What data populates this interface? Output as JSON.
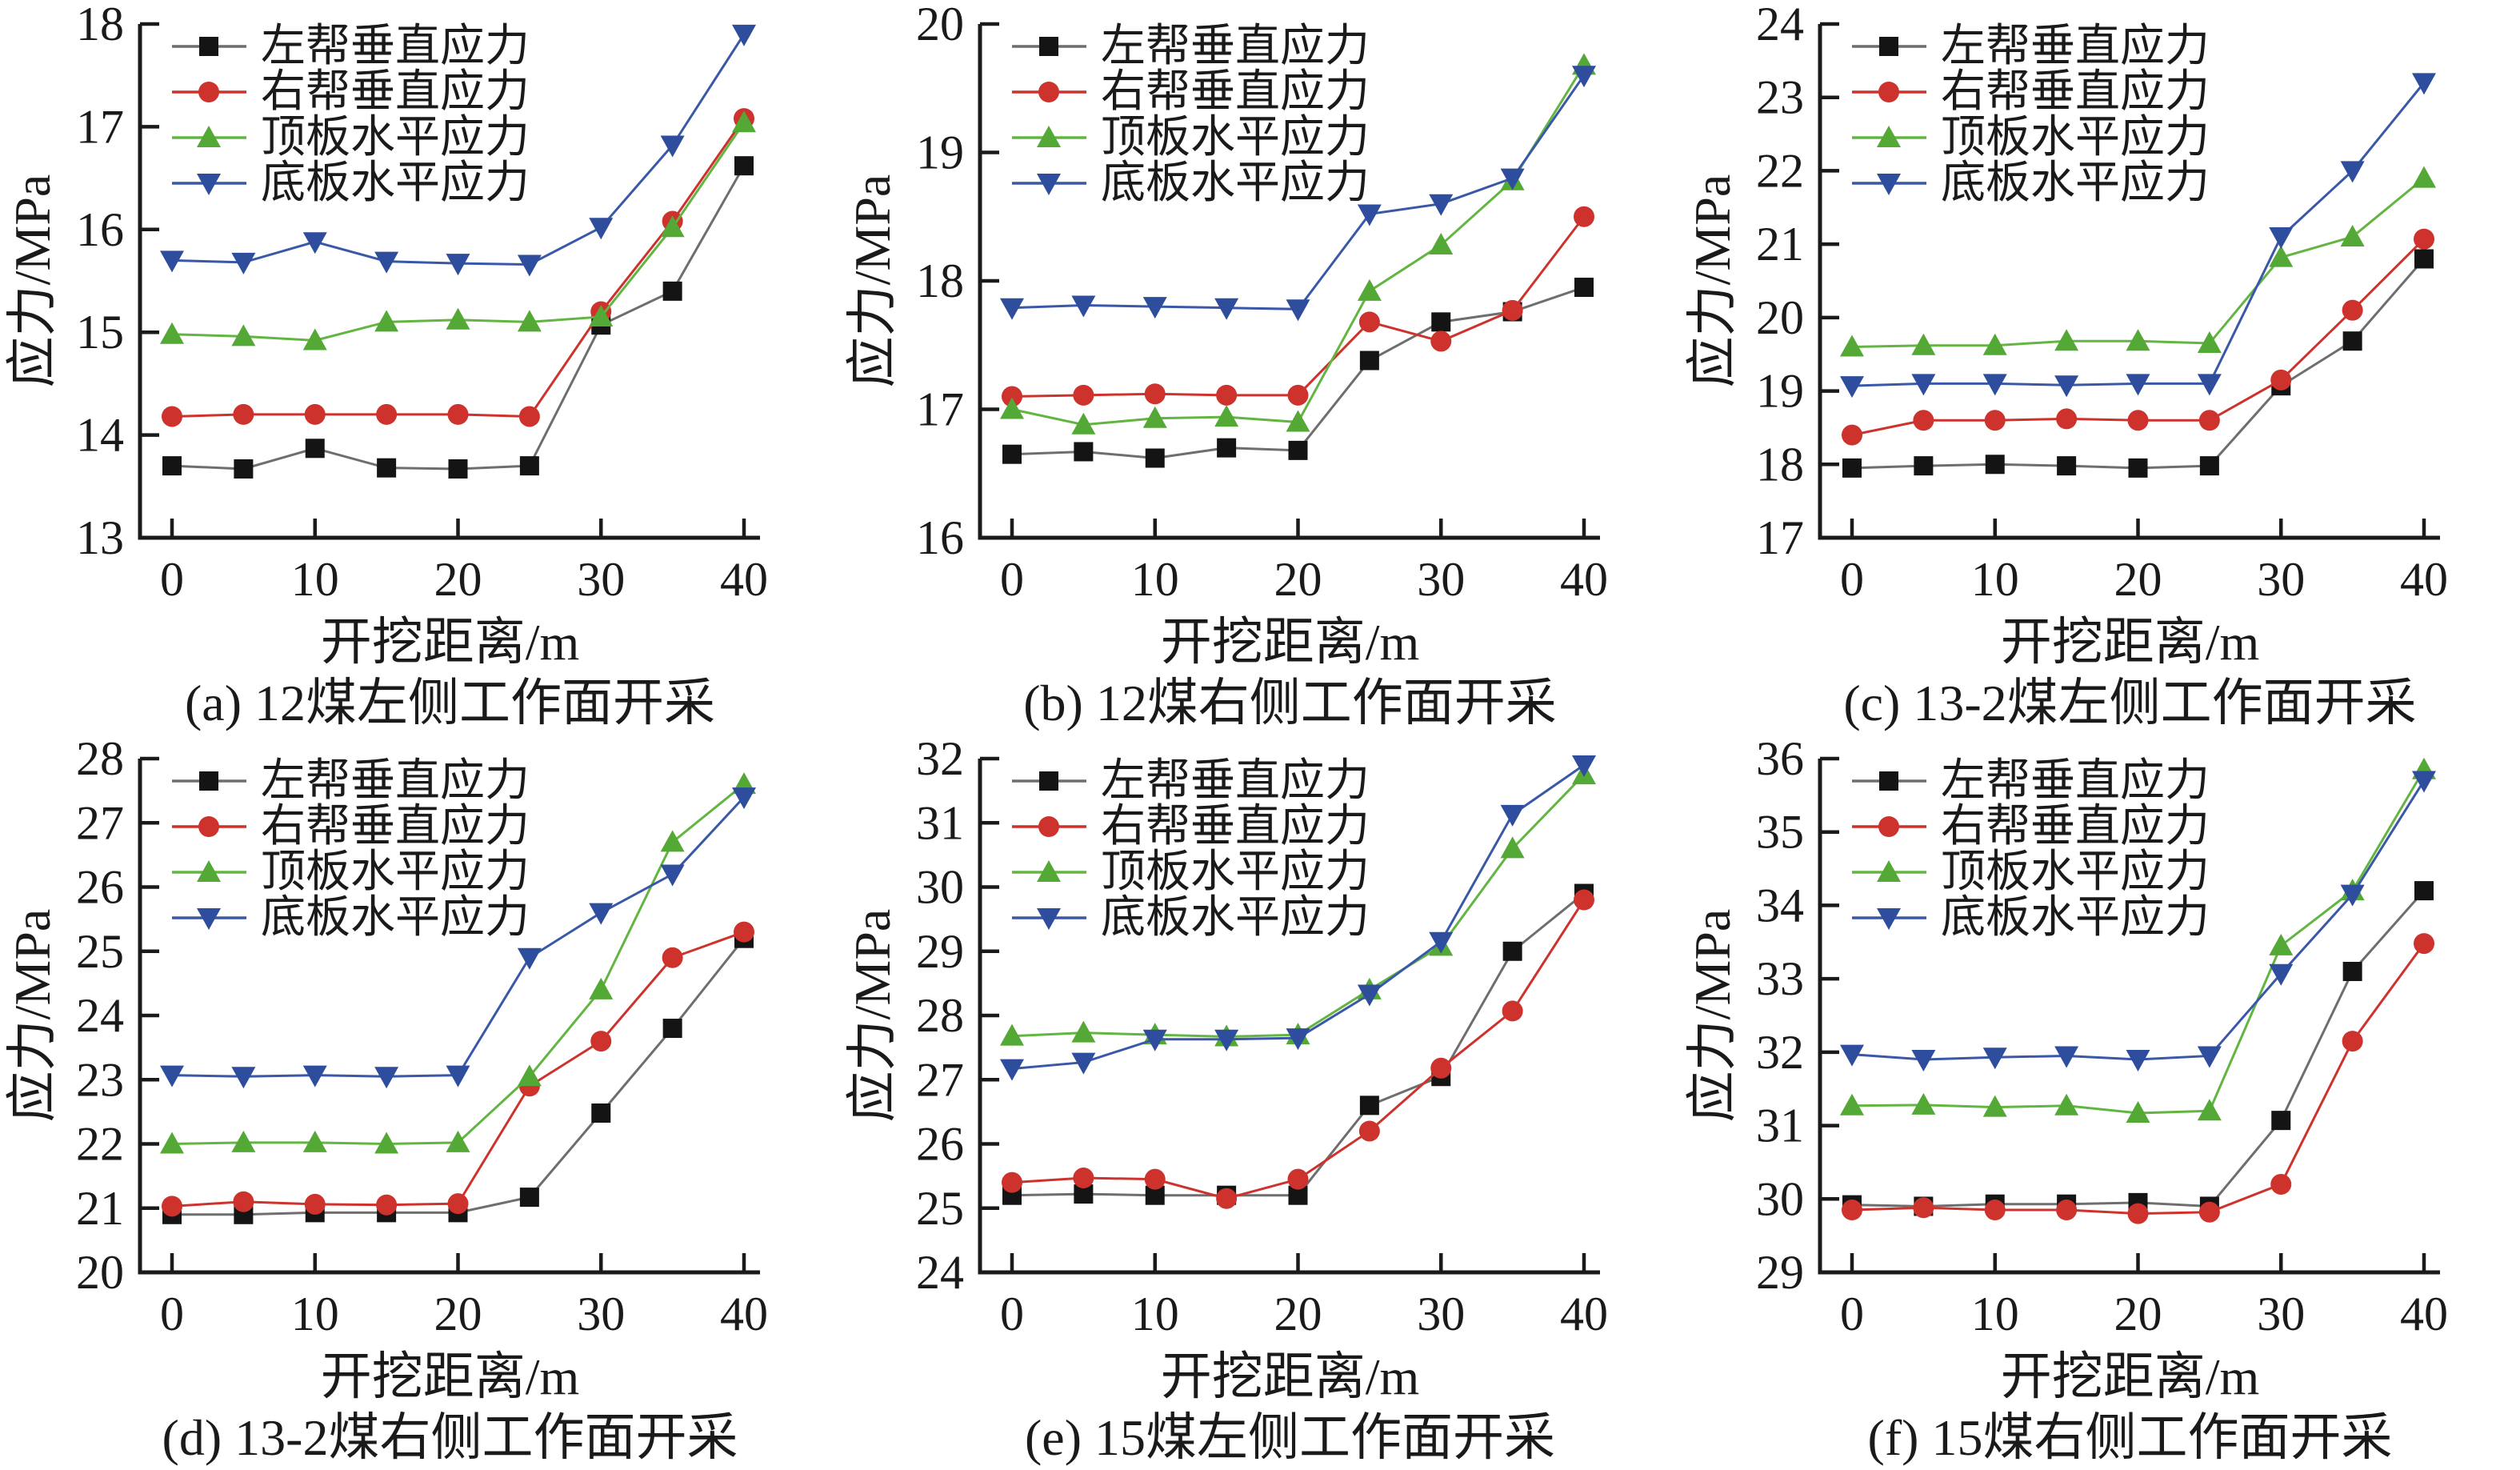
{
  "page": {
    "background": "#ffffff"
  },
  "chart_data": {
    "type": "line",
    "x": [
      0,
      5,
      10,
      15,
      20,
      25,
      30,
      35,
      40
    ],
    "xticks": [
      0,
      10,
      20,
      30,
      40
    ],
    "xlabel": "开挖距离/m",
    "ylabel": "应力/MPa",
    "grid": false,
    "legend_position": "top-left",
    "axis_color": "#1a1a1a",
    "series_meta": [
      {
        "name": "左帮垂直应力",
        "marker": "square",
        "color": "#141414",
        "line_color": "#6e6e6e"
      },
      {
        "name": "右帮垂直应力",
        "marker": "circle",
        "color": "#cd322c",
        "line_color": "#cd322c"
      },
      {
        "name": "顶板水平应力",
        "marker": "triangle-up",
        "color": "#53a836",
        "line_color": "#63b542"
      },
      {
        "name": "底板水平应力",
        "marker": "triangle-down",
        "color": "#2e4d9c",
        "line_color": "#3a58a8"
      }
    ],
    "charts": [
      {
        "caption": "(a) 12煤左侧工作面开采",
        "ylim": [
          13,
          18
        ],
        "yticks": [
          13,
          14,
          15,
          16,
          17,
          18
        ],
        "series": [
          [
            13.7,
            13.67,
            13.87,
            13.68,
            13.67,
            13.7,
            15.07,
            15.4,
            16.62
          ],
          [
            14.18,
            14.2,
            14.2,
            14.2,
            14.2,
            14.18,
            15.2,
            16.08,
            17.08
          ],
          [
            14.98,
            14.96,
            14.92,
            15.1,
            15.12,
            15.1,
            15.15,
            16.02,
            17.04
          ],
          [
            15.7,
            15.68,
            15.88,
            15.69,
            15.67,
            15.66,
            16.02,
            16.82,
            17.9
          ]
        ]
      },
      {
        "caption": "(b) 12煤右侧工作面开采",
        "ylim": [
          16,
          20
        ],
        "yticks": [
          16,
          17,
          18,
          19,
          20
        ],
        "series": [
          [
            16.65,
            16.67,
            16.62,
            16.7,
            16.68,
            17.38,
            17.68,
            17.76,
            17.95
          ],
          [
            17.1,
            17.11,
            17.12,
            17.11,
            17.11,
            17.68,
            17.53,
            17.77,
            18.5
          ],
          [
            17.0,
            16.88,
            16.93,
            16.94,
            16.9,
            17.92,
            18.28,
            18.78,
            19.68
          ],
          [
            17.79,
            17.81,
            17.8,
            17.79,
            17.78,
            18.52,
            18.6,
            18.8,
            19.6
          ]
        ]
      },
      {
        "caption": "(c) 13-2煤左侧工作面开采",
        "ylim": [
          17,
          24
        ],
        "yticks": [
          17,
          18,
          19,
          20,
          21,
          22,
          23,
          24
        ],
        "series": [
          [
            17.95,
            17.98,
            18.0,
            17.98,
            17.95,
            17.98,
            19.07,
            19.68,
            20.8
          ],
          [
            18.4,
            18.6,
            18.6,
            18.62,
            18.6,
            18.6,
            19.15,
            20.1,
            21.07
          ],
          [
            19.6,
            19.62,
            19.62,
            19.68,
            19.68,
            19.65,
            20.82,
            21.1,
            21.9
          ],
          [
            19.07,
            19.1,
            19.1,
            19.08,
            19.1,
            19.1,
            21.1,
            22.0,
            23.2
          ]
        ]
      },
      {
        "caption": "(d) 13-2煤右侧工作面开采",
        "ylim": [
          20,
          28
        ],
        "yticks": [
          20,
          21,
          22,
          23,
          24,
          25,
          26,
          27,
          28
        ],
        "series": [
          [
            20.9,
            20.9,
            20.93,
            20.93,
            20.93,
            21.17,
            22.48,
            23.8,
            25.2
          ],
          [
            21.03,
            21.1,
            21.06,
            21.05,
            21.07,
            22.9,
            23.6,
            24.9,
            25.3
          ],
          [
            22.0,
            22.02,
            22.02,
            22.0,
            22.02,
            23.05,
            24.4,
            26.7,
            27.6
          ],
          [
            23.07,
            23.05,
            23.07,
            23.05,
            23.07,
            24.9,
            25.6,
            26.2,
            27.4
          ]
        ]
      },
      {
        "caption": "(e) 15煤左侧工作面开采",
        "ylim": [
          24,
          32
        ],
        "yticks": [
          24,
          25,
          26,
          27,
          28,
          29,
          30,
          31,
          32
        ],
        "series": [
          [
            25.2,
            25.22,
            25.2,
            25.2,
            25.2,
            26.6,
            27.05,
            29.0,
            29.9
          ],
          [
            25.4,
            25.47,
            25.45,
            25.15,
            25.45,
            26.2,
            27.18,
            28.07,
            29.8
          ],
          [
            27.68,
            27.73,
            27.7,
            27.67,
            27.7,
            28.4,
            29.08,
            30.6,
            31.75
          ],
          [
            27.17,
            27.27,
            27.63,
            27.63,
            27.65,
            28.33,
            29.15,
            31.13,
            31.9
          ]
        ]
      },
      {
        "caption": "(f) 15煤右侧工作面开采",
        "ylim": [
          29,
          36
        ],
        "yticks": [
          29,
          30,
          31,
          32,
          33,
          34,
          35,
          36
        ],
        "series": [
          [
            29.92,
            29.9,
            29.93,
            29.93,
            29.95,
            29.9,
            31.07,
            33.1,
            34.2
          ],
          [
            29.85,
            29.88,
            29.85,
            29.85,
            29.8,
            29.82,
            30.2,
            32.15,
            33.48
          ],
          [
            31.27,
            31.28,
            31.25,
            31.27,
            31.17,
            31.2,
            33.45,
            34.2,
            35.85
          ],
          [
            31.97,
            31.9,
            31.93,
            31.95,
            31.9,
            31.95,
            33.07,
            34.15,
            35.7
          ]
        ]
      }
    ]
  }
}
